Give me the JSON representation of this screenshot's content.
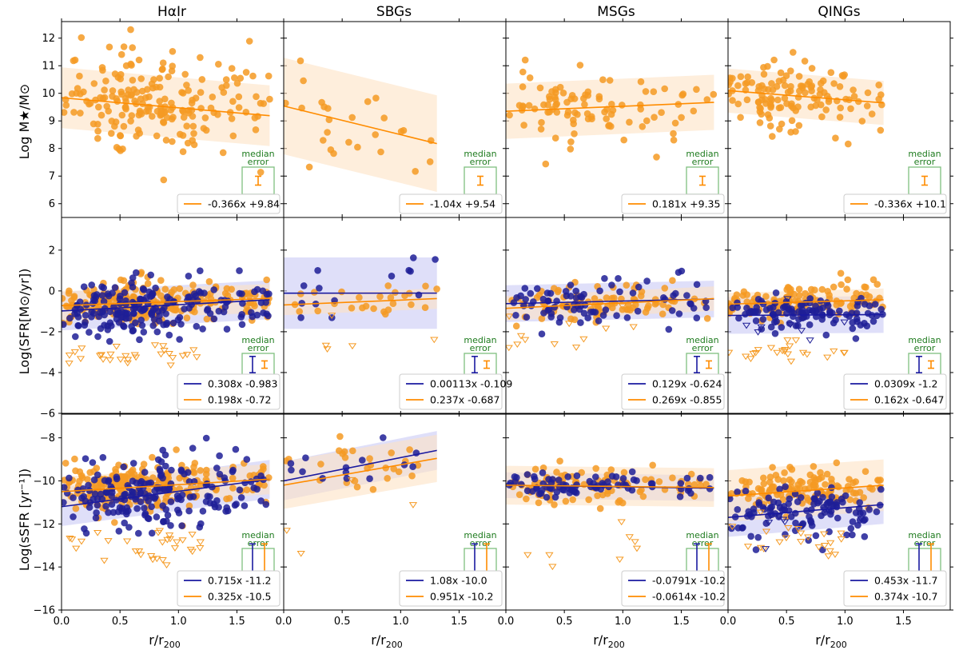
{
  "figure": {
    "column_titles": [
      "HαIr",
      "SBGs",
      "MSGs",
      "QINGs"
    ],
    "xlabel": "r/r₂₀₀",
    "xlabel_main": "r/r",
    "xlabel_sub": "200",
    "xlim": [
      0.0,
      1.9
    ],
    "xticks": [
      "0.0",
      "0.5",
      "1.0",
      "1.5"
    ],
    "rows": [
      {
        "ylabel": "Log M★/M⊙",
        "ylim": [
          5.5,
          12.6
        ],
        "yticks": [
          "6",
          "7",
          "8",
          "9",
          "10",
          "11",
          "12"
        ]
      },
      {
        "ylabel": "Log(SFR[M⊙/yr])",
        "ylim": [
          -6.0,
          3.6
        ],
        "yticks": [
          "−6",
          "−4",
          "−2",
          "0",
          "2"
        ]
      },
      {
        "ylabel": "Log(sSFR [yr⁻¹])",
        "ylim": [
          -16.0,
          -6.9
        ],
        "yticks": [
          "−16",
          "−14",
          "−12",
          "−10",
          "−8"
        ]
      }
    ],
    "median_error_label": [
      "median",
      "error"
    ],
    "colors": {
      "orange": "#ff8c00",
      "orange_pt": "#f59a23",
      "blue": "#1a1aa0",
      "blue_pt": "#1f1f96",
      "green": "#1e7b1e",
      "box_green": "#7fbf7f",
      "band_orange": "#fde3c4",
      "band_blue": "#c9c9f5"
    }
  },
  "chart_data": [
    {
      "type": "scatter",
      "row": 0,
      "col": 0,
      "title": "HαIr",
      "fits": [
        {
          "label": "-0.366x +9.84",
          "slope": -0.366,
          "intercept": 9.84,
          "band": 1.1,
          "xmax": 1.78,
          "color": "orange"
        }
      ],
      "points": {
        "orange": {
          "n": 200,
          "xmax": 1.78,
          "mean": 9.7,
          "sd": 0.9,
          "seed": 11
        }
      },
      "median_error": {
        "orange": 0.16
      }
    },
    {
      "type": "scatter",
      "row": 0,
      "col": 1,
      "title": "SBGs",
      "fits": [
        {
          "label": "-1.04x +9.54",
          "slope": -1.04,
          "intercept": 9.54,
          "band": 1.75,
          "xmax": 1.31,
          "color": "orange"
        }
      ],
      "points": {
        "orange": {
          "n": 26,
          "xmax": 1.31,
          "mean": 8.9,
          "sd": 1.1,
          "seed": 21
        }
      },
      "median_error": {
        "orange": 0.16
      }
    },
    {
      "type": "scatter",
      "row": 0,
      "col": 2,
      "title": "MSGs",
      "fits": [
        {
          "label": "0.181x +9.35",
          "slope": 0.181,
          "intercept": 9.35,
          "band": 1.0,
          "xmax": 1.78,
          "color": "orange"
        }
      ],
      "points": {
        "orange": {
          "n": 95,
          "xmax": 1.78,
          "mean": 9.5,
          "sd": 0.8,
          "seed": 31
        }
      },
      "median_error": {
        "orange": 0.16
      }
    },
    {
      "type": "scatter",
      "row": 0,
      "col": 3,
      "title": "QINGs",
      "fits": [
        {
          "label": "-0.336x +10.1",
          "slope": -0.336,
          "intercept": 10.1,
          "band": 0.8,
          "xmax": 1.33,
          "color": "orange"
        }
      ],
      "points": {
        "orange": {
          "n": 130,
          "xmax": 1.33,
          "mean": 10.0,
          "sd": 0.6,
          "seed": 41
        }
      },
      "median_error": {
        "orange": 0.16
      }
    },
    {
      "type": "scatter",
      "row": 1,
      "col": 0,
      "title": "HαIr",
      "fits": [
        {
          "label": "0.308x -0.983",
          "slope": 0.308,
          "intercept": -0.983,
          "band": 0.95,
          "xmax": 1.78,
          "color": "blue"
        },
        {
          "label": "0.198x -0.72",
          "slope": 0.198,
          "intercept": -0.72,
          "band": 0.7,
          "xmax": 1.78,
          "color": "orange"
        }
      ],
      "points": {
        "blue": {
          "n": 190,
          "xmax": 1.78,
          "mean": -0.85,
          "sd": 0.65,
          "seed": 12
        },
        "orange": {
          "n": 220,
          "xmax": 1.78,
          "mean": -0.6,
          "sd": 0.5,
          "seed": 13
        },
        "orange_ul": {
          "n": 28,
          "xmax": 1.2,
          "mean": -3.1,
          "sd": 0.25,
          "seed": 14
        }
      },
      "median_error": {
        "blue": 0.4,
        "orange": 0.18
      }
    },
    {
      "type": "scatter",
      "row": 1,
      "col": 1,
      "title": "SBGs",
      "fits": [
        {
          "label": "0.00113x -0.109",
          "slope": 0.00113,
          "intercept": -0.109,
          "band": 1.75,
          "xmax": 1.31,
          "color": "blue"
        },
        {
          "label": "0.237x -0.687",
          "slope": 0.237,
          "intercept": -0.687,
          "band": 0.5,
          "xmax": 1.31,
          "color": "orange"
        }
      ],
      "points": {
        "blue": {
          "n": 14,
          "xmax": 1.31,
          "mean": -0.2,
          "sd": 0.8,
          "seed": 22
        },
        "orange": {
          "n": 26,
          "xmax": 1.31,
          "mean": -0.6,
          "sd": 0.4,
          "seed": 23
        },
        "orange_ul": {
          "n": 5,
          "xmax": 1.31,
          "mean": -2.4,
          "sd": 0.6,
          "seed": 24
        }
      },
      "median_error": {
        "blue": 0.4,
        "orange": 0.18
      }
    },
    {
      "type": "scatter",
      "row": 1,
      "col": 2,
      "title": "MSGs",
      "fits": [
        {
          "label": "0.129x -0.624",
          "slope": 0.129,
          "intercept": -0.624,
          "band": 0.9,
          "xmax": 1.78,
          "color": "blue"
        },
        {
          "label": "0.269x -0.855",
          "slope": 0.269,
          "intercept": -0.855,
          "band": 0.6,
          "xmax": 1.78,
          "color": "orange"
        }
      ],
      "points": {
        "blue": {
          "n": 80,
          "xmax": 1.78,
          "mean": -0.6,
          "sd": 0.6,
          "seed": 32
        },
        "orange": {
          "n": 90,
          "xmax": 1.78,
          "mean": -0.7,
          "sd": 0.45,
          "seed": 33
        },
        "orange_ul": {
          "n": 12,
          "xmax": 1.1,
          "mean": -2.3,
          "sd": 0.7,
          "seed": 34
        }
      },
      "median_error": {
        "blue": 0.4,
        "orange": 0.18
      }
    },
    {
      "type": "scatter",
      "row": 1,
      "col": 3,
      "title": "QINGs",
      "fits": [
        {
          "label": "0.0309x -1.2",
          "slope": 0.0309,
          "intercept": -1.2,
          "band": 0.9,
          "xmax": 1.33,
          "color": "blue"
        },
        {
          "label": "0.162x -0.647",
          "slope": 0.162,
          "intercept": -0.647,
          "band": 0.55,
          "xmax": 1.33,
          "color": "orange"
        }
      ],
      "points": {
        "blue": {
          "n": 110,
          "xmax": 1.33,
          "mean": -1.1,
          "sd": 0.45,
          "seed": 42
        },
        "orange": {
          "n": 120,
          "xmax": 1.33,
          "mean": -0.5,
          "sd": 0.4,
          "seed": 43
        },
        "orange_ul": {
          "n": 22,
          "xmax": 1.0,
          "mean": -3.1,
          "sd": 0.25,
          "seed": 44
        },
        "blue_ul": {
          "n": 8,
          "xmax": 1.15,
          "mean": -2.2,
          "sd": 0.6,
          "seed": 45
        }
      },
      "median_error": {
        "blue": 0.4,
        "orange": 0.18
      }
    },
    {
      "type": "scatter",
      "row": 2,
      "col": 0,
      "title": "HαIr",
      "fits": [
        {
          "label": "0.715x -11.2",
          "slope": 0.715,
          "intercept": -11.2,
          "band": 0.9,
          "xmax": 1.78,
          "color": "blue"
        },
        {
          "label": "0.325x -10.5",
          "slope": 0.325,
          "intercept": -10.5,
          "band": 0.7,
          "xmax": 1.78,
          "color": "orange"
        }
      ],
      "points": {
        "blue": {
          "n": 190,
          "xmax": 1.78,
          "mean": -10.7,
          "sd": 0.9,
          "seed": 15
        },
        "orange": {
          "n": 220,
          "xmax": 1.78,
          "mean": -10.2,
          "sd": 0.6,
          "seed": 16
        },
        "orange_ul": {
          "n": 30,
          "xmax": 1.2,
          "mean": -12.9,
          "sd": 0.6,
          "seed": 17
        }
      },
      "median_error": {
        "blue": 0.9,
        "orange": 0.9
      }
    },
    {
      "type": "scatter",
      "row": 2,
      "col": 1,
      "title": "SBGs",
      "fits": [
        {
          "label": "1.08x -10.0",
          "slope": 1.08,
          "intercept": -10.0,
          "band": 0.9,
          "xmax": 1.31,
          "color": "blue"
        },
        {
          "label": "0.951x -10.2",
          "slope": 0.951,
          "intercept": -10.2,
          "band": 1.1,
          "xmax": 1.31,
          "color": "orange"
        }
      ],
      "points": {
        "blue": {
          "n": 14,
          "xmax": 1.31,
          "mean": -9.6,
          "sd": 0.5,
          "seed": 25
        },
        "orange": {
          "n": 26,
          "xmax": 1.31,
          "mean": -9.6,
          "sd": 0.8,
          "seed": 26
        },
        "orange_ul": {
          "n": 4,
          "xmax": 1.31,
          "mean": -11.5,
          "sd": 1.2,
          "seed": 27
        }
      },
      "median_error": {
        "blue": 0.9,
        "orange": 0.9
      }
    },
    {
      "type": "scatter",
      "row": 2,
      "col": 2,
      "title": "MSGs",
      "fits": [
        {
          "label": "-0.0791x -10.2",
          "slope": -0.0791,
          "intercept": -10.2,
          "band": 0.6,
          "xmax": 1.78,
          "color": "blue"
        },
        {
          "label": "-0.0614x -10.2",
          "slope": -0.0614,
          "intercept": -10.2,
          "band": 0.9,
          "xmax": 1.78,
          "color": "orange"
        }
      ],
      "points": {
        "blue": {
          "n": 80,
          "xmax": 1.78,
          "mean": -10.25,
          "sd": 0.3,
          "seed": 35
        },
        "orange": {
          "n": 95,
          "xmax": 1.78,
          "mean": -10.2,
          "sd": 0.45,
          "seed": 36
        },
        "orange_ul": {
          "n": 8,
          "xmax": 1.2,
          "mean": -12.8,
          "sd": 0.7,
          "seed": 37
        }
      },
      "median_error": {
        "blue": 0.9,
        "orange": 0.9
      }
    },
    {
      "type": "scatter",
      "row": 2,
      "col": 3,
      "title": "QINGs",
      "fits": [
        {
          "label": "0.453x -11.7",
          "slope": 0.453,
          "intercept": -11.7,
          "band": 0.9,
          "xmax": 1.33,
          "color": "blue"
        },
        {
          "label": "0.374x -10.7",
          "slope": 0.374,
          "intercept": -10.7,
          "band": 1.2,
          "xmax": 1.33,
          "color": "orange"
        }
      ],
      "points": {
        "blue": {
          "n": 110,
          "xmax": 1.33,
          "mean": -11.5,
          "sd": 0.6,
          "seed": 46
        },
        "orange": {
          "n": 120,
          "xmax": 1.33,
          "mean": -10.3,
          "sd": 0.45,
          "seed": 47
        },
        "orange_ul": {
          "n": 22,
          "xmax": 1.0,
          "mean": -12.7,
          "sd": 0.5,
          "seed": 48
        },
        "blue_ul": {
          "n": 8,
          "xmax": 1.2,
          "mean": -12.0,
          "sd": 0.6,
          "seed": 49
        }
      },
      "median_error": {
        "blue": 0.9,
        "orange": 0.9
      }
    }
  ]
}
